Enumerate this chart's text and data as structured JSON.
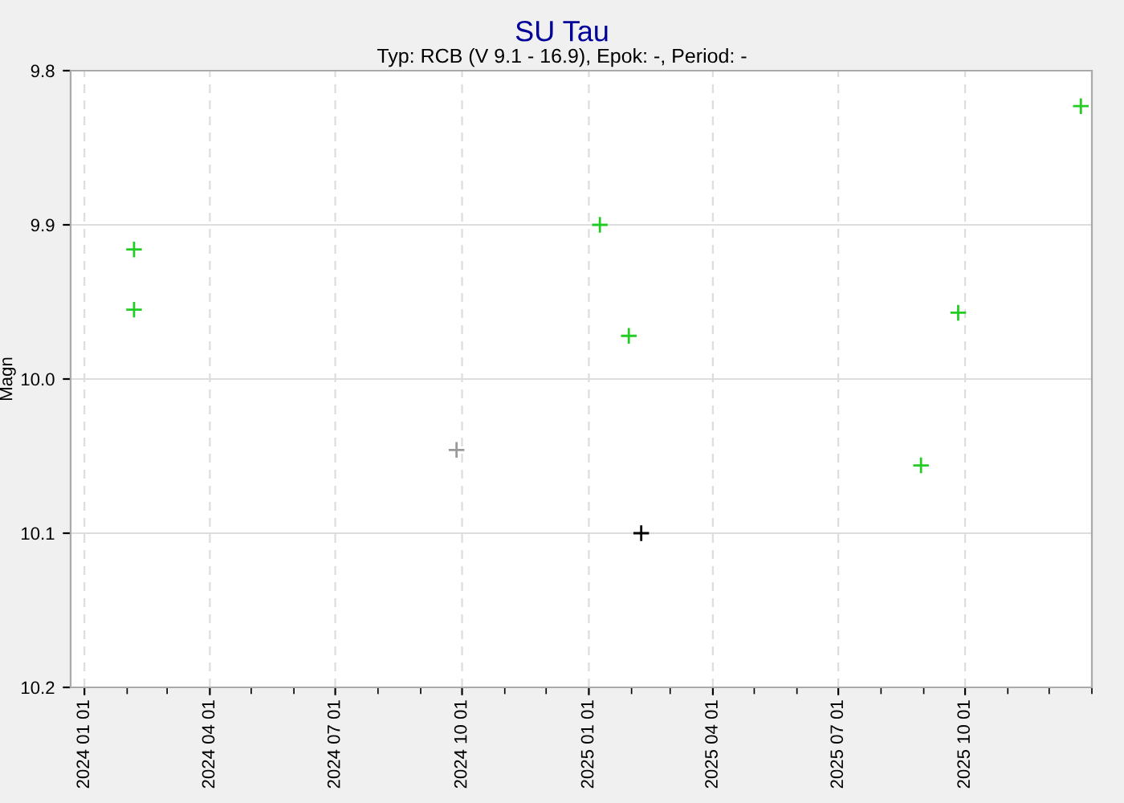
{
  "chart_data": {
    "type": "scatter",
    "title": "SU Tau",
    "subtitle": "Typ: RCB (V 9.1 - 16.9), Epok: -, Period: -",
    "ylabel": "Magn",
    "series": [
      {
        "color": "#22cc22",
        "x": [
          "2024-02-06",
          "2024-02-06",
          "2025-01-09",
          "2025-01-30",
          "2025-08-30",
          "2025-09-26",
          "2025-12-24"
        ],
        "values": [
          9.916,
          9.955,
          9.9,
          9.972,
          10.056,
          9.957,
          9.823
        ]
      },
      {
        "color": "#999999",
        "x": [
          "2024-09-27"
        ],
        "values": [
          10.046
        ]
      },
      {
        "color": "#000000",
        "x": [
          "2025-02-08"
        ],
        "values": [
          10.1
        ]
      }
    ],
    "xlim": [
      "2023-12-22",
      "2026-01-01"
    ],
    "xticks": [
      {
        "value": "2024-01-01",
        "label": "2024 01 01"
      },
      {
        "value": "2024-04-01",
        "label": "2024 04 01"
      },
      {
        "value": "2024-07-01",
        "label": "2024 07 01"
      },
      {
        "value": "2024-10-01",
        "label": "2024 10 01"
      },
      {
        "value": "2025-01-01",
        "label": "2025 01 01"
      },
      {
        "value": "2025-04-01",
        "label": "2025 04 01"
      },
      {
        "value": "2025-07-01",
        "label": "2025 07 01"
      },
      {
        "value": "2025-10-01",
        "label": "2025 10 01"
      }
    ],
    "ylim": [
      10.2,
      9.8
    ],
    "yticks": [
      9.8,
      9.9,
      {
        "value": 10.0,
        "label": "10.0"
      },
      10.1,
      10.2
    ],
    "grid": true,
    "marker": "cross"
  }
}
